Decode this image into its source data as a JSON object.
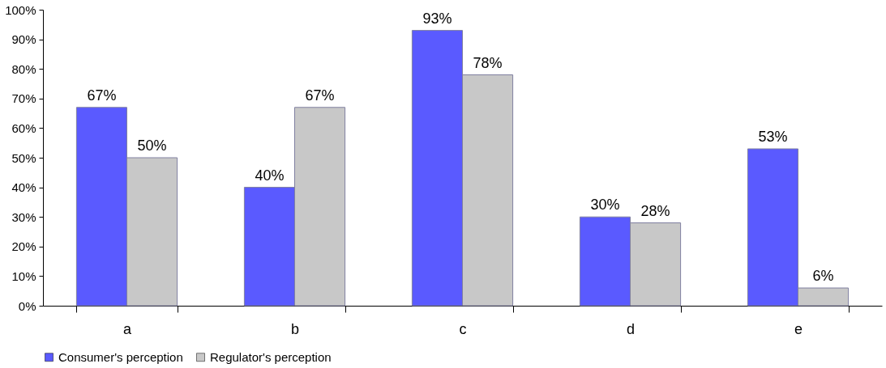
{
  "chart_data": {
    "type": "bar",
    "categories": [
      "a",
      "b",
      "c",
      "d",
      "e"
    ],
    "series": [
      {
        "name": "Consumer's  perception",
        "color": "#5a5aff",
        "values": [
          67,
          40,
          93,
          30,
          53
        ],
        "value_labels": [
          "67%",
          "40%",
          "93%",
          "30%",
          "53%"
        ]
      },
      {
        "name": "Regulator's perception",
        "color": "#c8c8c8",
        "values": [
          50,
          67,
          78,
          28,
          6
        ],
        "value_labels": [
          "50%",
          "67%",
          "78%",
          "28%",
          "6%"
        ]
      }
    ],
    "ylim": [
      0,
      100
    ],
    "yticks": [
      {
        "value": 0,
        "label": "0%"
      },
      {
        "value": 10,
        "label": "10%"
      },
      {
        "value": 20,
        "label": "20%"
      },
      {
        "value": 30,
        "label": "30%"
      },
      {
        "value": 40,
        "label": "40%"
      },
      {
        "value": 50,
        "label": "50%"
      },
      {
        "value": 60,
        "label": "60%"
      },
      {
        "value": 70,
        "label": "70%"
      },
      {
        "value": 80,
        "label": "80%"
      },
      {
        "value": 90,
        "label": "90%"
      },
      {
        "value": 100,
        "label": "100%"
      }
    ],
    "grid": false,
    "legend": "bottom"
  }
}
